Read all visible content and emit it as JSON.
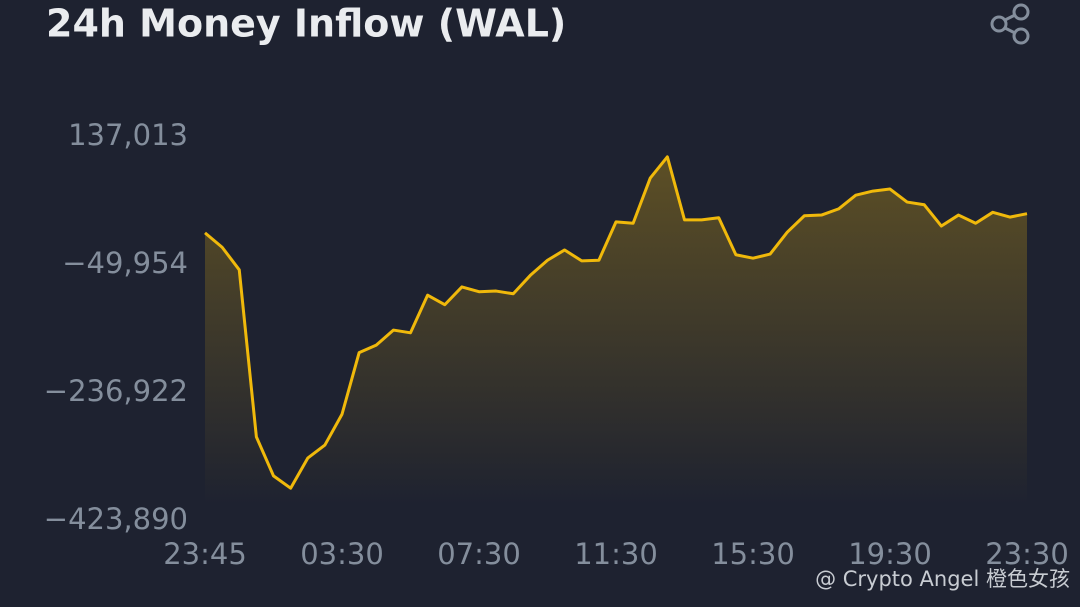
{
  "chart_data": {
    "type": "line",
    "title": "24h Money Inflow (WAL)",
    "categories": [
      "23:45",
      null,
      null,
      null,
      null,
      null,
      null,
      null,
      "03:30",
      null,
      null,
      null,
      null,
      null,
      null,
      null,
      "07:30",
      null,
      null,
      null,
      null,
      null,
      null,
      null,
      "11:30",
      null,
      null,
      null,
      null,
      null,
      null,
      null,
      "15:30",
      null,
      null,
      null,
      null,
      null,
      null,
      null,
      "19:30",
      null,
      null,
      null,
      null,
      null,
      null,
      null,
      "23:30"
    ],
    "series": [
      {
        "name": "WAL",
        "color": "#f0b90b",
        "values": [
          -3000,
          -24000,
          -57000,
          -301000,
          -358000,
          -376000,
          -332000,
          -313000,
          -268000,
          -178000,
          -167000,
          -145000,
          -149000,
          -94000,
          -108000,
          -82000,
          -89000,
          -88000,
          -92000,
          -65000,
          -43000,
          -28000,
          -44000,
          -43000,
          13000,
          11000,
          77000,
          108000,
          16000,
          16000,
          19000,
          -35000,
          -40000,
          -34000,
          -2000,
          22000,
          23000,
          32000,
          52000,
          58000,
          61000,
          42000,
          38000,
          7000,
          23000,
          11000,
          27000,
          20000,
          25000
        ]
      }
    ],
    "ylim": [
      -423890,
      137013
    ],
    "yticks": [
      {
        "value": 137013,
        "label": "137,013"
      },
      {
        "value": -49954,
        "label": "−49,954"
      },
      {
        "value": -236922,
        "label": "−236,922"
      },
      {
        "value": -423890,
        "label": "−423,890"
      }
    ],
    "watermark": "@ Crypto Angel 橙色女孩"
  }
}
